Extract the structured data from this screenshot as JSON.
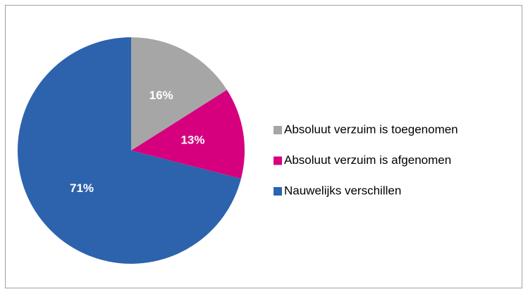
{
  "chart_data": {
    "type": "pie",
    "categories": [
      "Absoluut verzuim is toegenomen",
      "Absoluut verzuim is afgenomen",
      "Nauwelijks verschillen"
    ],
    "values": [
      16,
      13,
      71
    ],
    "value_labels": [
      "16%",
      "13%",
      "71%"
    ],
    "colors": [
      "#a6a6a6",
      "#d6007f",
      "#2d63ad"
    ],
    "legend": "right"
  }
}
